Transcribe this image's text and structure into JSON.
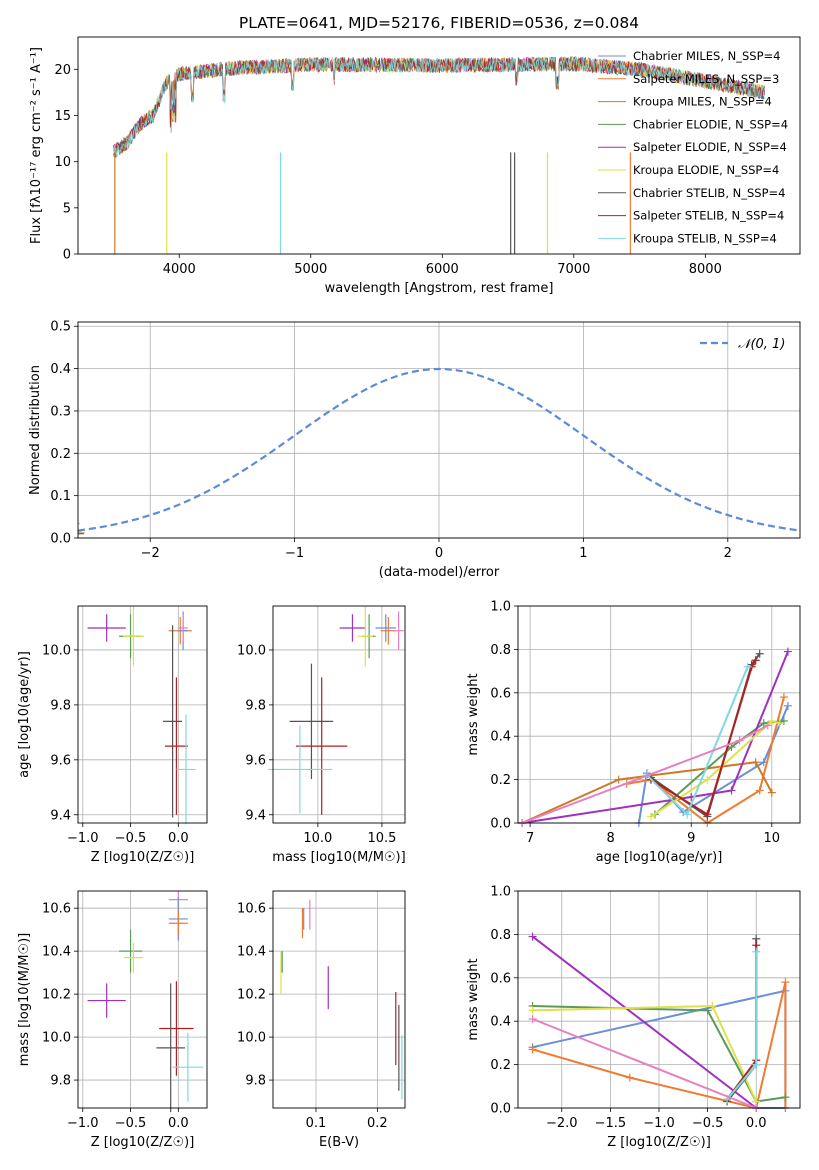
{
  "chart_data": [
    {
      "type": "line",
      "title": "PLATE=0641, MJD=52176, FIBERID=0536, z=0.084",
      "xlabel": "wavelength [Angstrom, rest frame]",
      "ylabel": "Flux [fλ10⁻¹⁷ erg cm⁻² s⁻¹ A⁻¹]",
      "xlim": [
        3230,
        8720
      ],
      "ylim": [
        0,
        23.5
      ],
      "xticks": [
        "4000",
        "5000",
        "6000",
        "7000",
        "8000"
      ],
      "yticks": [
        "0",
        "5",
        "10",
        "15",
        "20"
      ],
      "legend_loc": "upper right",
      "legend": [
        {
          "label": "Chabrier MILES, N_SSP=4",
          "color": "#6a8fd6"
        },
        {
          "label": "Salpeter MILES, N_SSP=3",
          "color": "#f07a30"
        },
        {
          "label": "Kroupa MILES, N_SSP=4",
          "color": "#cc7a2a"
        },
        {
          "label": "Chabrier ELODIE, N_SSP=4",
          "color": "#5a9a5a"
        },
        {
          "label": "Salpeter ELODIE, N_SSP=4",
          "color": "#a030c0"
        },
        {
          "label": "Kroupa ELODIE, N_SSP=4",
          "color": "#e0e04a"
        },
        {
          "label": "Chabrier STELIB, N_SSP=4",
          "color": "#555555"
        },
        {
          "label": "Salpeter STELIB, N_SSP=4",
          "color": "#b02020"
        },
        {
          "label": "Kroupa STELIB, N_SSP=4",
          "color": "#80d8e0"
        }
      ],
      "spectrum_shape": {
        "x": [
          3500,
          3600,
          3700,
          3800,
          3900,
          4000,
          4100,
          4300,
          4500,
          5000,
          5500,
          6000,
          6500,
          7000,
          7500,
          8000,
          8450
        ],
        "y": [
          11,
          12,
          14,
          15,
          18.5,
          19.5,
          19.6,
          20,
          20.2,
          20.5,
          20.5,
          20.4,
          20.5,
          20.6,
          20,
          18.7,
          17.5
        ]
      }
    },
    {
      "type": "histogram",
      "xlabel": "(data-model)/error",
      "ylabel": "Normed distribution",
      "xlim": [
        -2.5,
        2.5
      ],
      "ylim": [
        0,
        0.51
      ],
      "xticks": [
        "−2",
        "−1",
        "0",
        "1",
        "2"
      ],
      "yticks": [
        "0.0",
        "0.1",
        "0.2",
        "0.3",
        "0.4",
        "0.5"
      ],
      "reference_curve": "𝒩(0, 1)",
      "legend_loc": "upper right"
    },
    {
      "type": "errorbar",
      "xlabel": "Z [log10(Z/Z☉)]",
      "ylabel": "age  [log10(age/yr)]",
      "xlim": [
        -1.05,
        0.3
      ],
      "ylim": [
        9.37,
        10.16
      ],
      "xticks": [
        "−1.0",
        "−0.5",
        "0.0"
      ],
      "yticks": [
        "9.4",
        "9.6",
        "9.8",
        "10.0"
      ],
      "points": [
        {
          "x": -0.75,
          "y": 10.08,
          "xerr": 0.2,
          "yerr": 0.05,
          "color": "#a030c0"
        },
        {
          "x": -0.5,
          "y": 10.05,
          "xerr": 0.12,
          "yerr": 0.08,
          "color": "#5a9a5a"
        },
        {
          "x": -0.47,
          "y": 10.05,
          "xerr": 0.11,
          "yerr": 0.11,
          "color": "#e0e04a"
        },
        {
          "x": 0.02,
          "y": 10.07,
          "xerr": 0.12,
          "yerr": 0.05,
          "color": "#f07a30"
        },
        {
          "x": 0.05,
          "y": 10.07,
          "xerr": 0.05,
          "yerr": 0.07,
          "color": "#6a8fd6"
        },
        {
          "x": 0.05,
          "y": 10.08,
          "xerr": 0.05,
          "yerr": 0.05,
          "color": "#e87fc0"
        },
        {
          "x": -0.06,
          "y": 9.74,
          "xerr": 0.1,
          "yerr": 0.35,
          "color": "#555555"
        },
        {
          "x": -0.02,
          "y": 9.65,
          "xerr": 0.12,
          "yerr": 0.25,
          "color": "#b02020"
        },
        {
          "x": 0.08,
          "y": 9.565,
          "xerr": 0.1,
          "yerr": 0.2,
          "color": "#80d8e0"
        }
      ]
    },
    {
      "type": "errorbar",
      "xlabel": "mass [log10(M/M☉)]",
      "xlim": [
        9.65,
        10.68
      ],
      "ylim": [
        9.37,
        10.16
      ],
      "xticks": [
        "10.0",
        "10.5"
      ],
      "yticks": [
        "9.4",
        "9.6",
        "9.8",
        "10.0"
      ],
      "points": [
        {
          "x": 10.27,
          "y": 10.08,
          "xerr": 0.1,
          "yerr": 0.05,
          "color": "#a030c0"
        },
        {
          "x": 10.4,
          "y": 10.05,
          "xerr": 0.05,
          "yerr": 0.08,
          "color": "#5a9a5a"
        },
        {
          "x": 10.37,
          "y": 10.05,
          "xerr": 0.06,
          "yerr": 0.11,
          "color": "#e0e04a"
        },
        {
          "x": 10.55,
          "y": 10.07,
          "xerr": 0.06,
          "yerr": 0.05,
          "color": "#f07a30"
        },
        {
          "x": 10.53,
          "y": 10.08,
          "xerr": 0.08,
          "yerr": 0.05,
          "color": "#6a8fd6"
        },
        {
          "x": 10.63,
          "y": 10.07,
          "xerr": 0.04,
          "yerr": 0.07,
          "color": "#e87fc0"
        },
        {
          "x": 9.95,
          "y": 9.74,
          "xerr": 0.17,
          "yerr": 0.21,
          "color": "#555555"
        },
        {
          "x": 10.03,
          "y": 9.65,
          "xerr": 0.2,
          "yerr": 0.25,
          "color": "#b02020"
        },
        {
          "x": 9.86,
          "y": 9.565,
          "xerr": 0.25,
          "yerr": 0.16,
          "color": "#80d8e0"
        }
      ]
    },
    {
      "type": "line",
      "xlabel": "age  [log10(age/yr)]",
      "ylabel": "mass weight",
      "xlim": [
        6.85,
        10.35
      ],
      "ylim": [
        0,
        1
      ],
      "xticks": [
        "7",
        "8",
        "9",
        "10"
      ],
      "yticks": [
        "0.0",
        "0.2",
        "0.4",
        "0.6",
        "0.8",
        "1.0"
      ],
      "series": [
        {
          "color": "#6a8fd6",
          "x": [
            8.35,
            8.45,
            8.9,
            9.9,
            10.2
          ],
          "y": [
            0.0,
            0.23,
            0.05,
            0.28,
            0.54
          ]
        },
        {
          "color": "#f07a30",
          "x": [
            8.2,
            8.5,
            9.2,
            9.85,
            10.15
          ],
          "y": [
            0.18,
            0.2,
            0.0,
            0.15,
            0.58
          ]
        },
        {
          "color": "#cc7a2a",
          "x": [
            6.9,
            8.1,
            9.8,
            10.0
          ],
          "y": [
            0.0,
            0.2,
            0.28,
            0.14
          ]
        },
        {
          "color": "#5a9a5a",
          "x": [
            8.55,
            9.5,
            9.9,
            10.15
          ],
          "y": [
            0.04,
            0.35,
            0.46,
            0.47
          ]
        },
        {
          "color": "#a030c0",
          "x": [
            6.9,
            9.0,
            9.5,
            10.2
          ],
          "y": [
            0.0,
            0.12,
            0.15,
            0.79
          ]
        },
        {
          "color": "#e0e04a",
          "x": [
            8.5,
            9.2,
            10.0,
            10.1
          ],
          "y": [
            0.03,
            0.2,
            0.47,
            0.46
          ]
        },
        {
          "color": "#555555",
          "x": [
            8.5,
            9.2,
            9.75,
            9.85
          ],
          "y": [
            0.21,
            0.03,
            0.73,
            0.78
          ]
        },
        {
          "color": "#b02020",
          "x": [
            8.5,
            9.2,
            9.75,
            9.8
          ],
          "y": [
            0.2,
            0.04,
            0.72,
            0.75
          ]
        },
        {
          "color": "#80d8e0",
          "x": [
            8.45,
            8.95,
            9.7
          ],
          "y": [
            0.22,
            0.04,
            0.72
          ]
        },
        {
          "color": "#e87fc0",
          "x": [
            6.9,
            9.6,
            9.95
          ],
          "y": [
            0.0,
            0.38,
            0.45
          ]
        }
      ]
    },
    {
      "type": "errorbar",
      "xlabel": "Z [log10(Z/Z☉)]",
      "ylabel": "mass [log10(M/M☉)]",
      "xlim": [
        -1.05,
        0.3
      ],
      "ylim": [
        9.67,
        10.68
      ],
      "xticks": [
        "−1.0",
        "−0.5",
        "0.0"
      ],
      "yticks": [
        "9.8",
        "10.0",
        "10.2",
        "10.4",
        "10.6"
      ],
      "points": [
        {
          "x": -0.75,
          "y": 10.17,
          "xerr": 0.2,
          "yerr": 0.08,
          "color": "#a030c0"
        },
        {
          "x": -0.5,
          "y": 10.4,
          "xerr": 0.12,
          "yerr": 0.1,
          "color": "#5a9a5a"
        },
        {
          "x": -0.47,
          "y": 10.37,
          "xerr": 0.1,
          "yerr": 0.07,
          "color": "#e0e04a"
        },
        {
          "x": 0.0,
          "y": 10.64,
          "xerr": 0.1,
          "yerr": 0.04,
          "color": "#e87fc0"
        },
        {
          "x": 0.0,
          "y": 10.55,
          "xerr": 0.1,
          "yerr": 0.1,
          "color": "#6a8fd6"
        },
        {
          "x": 0.0,
          "y": 10.53,
          "xerr": 0.1,
          "yerr": 0.06,
          "color": "#f07a30"
        },
        {
          "x": -0.02,
          "y": 10.04,
          "xerr": 0.18,
          "yerr": 0.22,
          "color": "#b02020"
        },
        {
          "x": -0.08,
          "y": 9.95,
          "xerr": 0.15,
          "yerr": 0.3,
          "color": "#555555"
        },
        {
          "x": 0.1,
          "y": 9.86,
          "xerr": 0.16,
          "yerr": 0.16,
          "color": "#80d8e0"
        }
      ]
    },
    {
      "type": "errorbar",
      "xlabel": "E(B-V)",
      "xlim": [
        0.03,
        0.245
      ],
      "ylim": [
        9.67,
        10.68
      ],
      "xticks": [
        "0.1",
        "0.2"
      ],
      "yticks": [
        "9.8",
        "10.0",
        "10.2",
        "10.4",
        "10.6"
      ],
      "points": [
        {
          "x": 0.043,
          "y": 10.3,
          "xerr": 0.0,
          "yerr": 0.1,
          "color": "#e0e04a"
        },
        {
          "x": 0.045,
          "y": 10.35,
          "xerr": 0.0,
          "yerr": 0.05,
          "color": "#5a9a5a"
        },
        {
          "x": 0.078,
          "y": 10.53,
          "xerr": 0.0,
          "yerr": 0.07,
          "color": "#f07a30"
        },
        {
          "x": 0.08,
          "y": 10.55,
          "xerr": 0.0,
          "yerr": 0.05,
          "color": "#6a8fd6"
        },
        {
          "x": 0.09,
          "y": 10.57,
          "xerr": 0.0,
          "yerr": 0.07,
          "color": "#e87fc0"
        },
        {
          "x": 0.12,
          "y": 10.23,
          "xerr": 0.0,
          "yerr": 0.1,
          "color": "#a030c0"
        },
        {
          "x": 0.23,
          "y": 10.04,
          "xerr": 0.0,
          "yerr": 0.17,
          "color": "#b02020"
        },
        {
          "x": 0.235,
          "y": 9.95,
          "xerr": 0.0,
          "yerr": 0.2,
          "color": "#555555"
        },
        {
          "x": 0.24,
          "y": 9.86,
          "xerr": 0.0,
          "yerr": 0.15,
          "color": "#80d8e0"
        }
      ]
    },
    {
      "type": "line",
      "xlabel": "Z [log10(Z/Z☉)]",
      "ylabel": "mass weight",
      "xlim": [
        -2.45,
        0.45
      ],
      "ylim": [
        0,
        1
      ],
      "xticks": [
        "−2.0",
        "−1.5",
        "−1.0",
        "−0.5",
        "0.0"
      ],
      "yticks": [
        "0.0",
        "0.2",
        "0.4",
        "0.6",
        "0.8",
        "1.0"
      ],
      "series": [
        {
          "color": "#6a8fd6",
          "x": [
            -2.3,
            0.3,
            0.3,
            0.0
          ],
          "y": [
            0.28,
            0.54,
            0.0,
            0.0
          ]
        },
        {
          "color": "#f07a30",
          "x": [
            -2.3,
            -1.3,
            0.0,
            0.3,
            0.3
          ],
          "y": [
            0.27,
            0.14,
            0.0,
            0.58,
            0.0
          ]
        },
        {
          "color": "#5a9a5a",
          "x": [
            -2.3,
            -0.5,
            0.0,
            0.3
          ],
          "y": [
            0.47,
            0.45,
            0.03,
            0.05
          ]
        },
        {
          "color": "#a030c0",
          "x": [
            -2.3,
            0.0
          ],
          "y": [
            0.79,
            0.0
          ]
        },
        {
          "color": "#e0e04a",
          "x": [
            -2.3,
            -0.45,
            0.0
          ],
          "y": [
            0.45,
            0.47,
            0.03
          ]
        },
        {
          "color": "#555555",
          "x": [
            -0.3,
            0.0,
            0.0
          ],
          "y": [
            0.03,
            0.2,
            0.78
          ]
        },
        {
          "color": "#b02020",
          "x": [
            -0.3,
            0.0,
            0.0
          ],
          "y": [
            0.04,
            0.22,
            0.75
          ]
        },
        {
          "color": "#80d8e0",
          "x": [
            -0.3,
            0.0,
            0.0
          ],
          "y": [
            0.04,
            0.2,
            0.72
          ]
        },
        {
          "color": "#e87fc0",
          "x": [
            -2.3,
            0.0
          ],
          "y": [
            0.41,
            0.0
          ]
        }
      ]
    }
  ]
}
